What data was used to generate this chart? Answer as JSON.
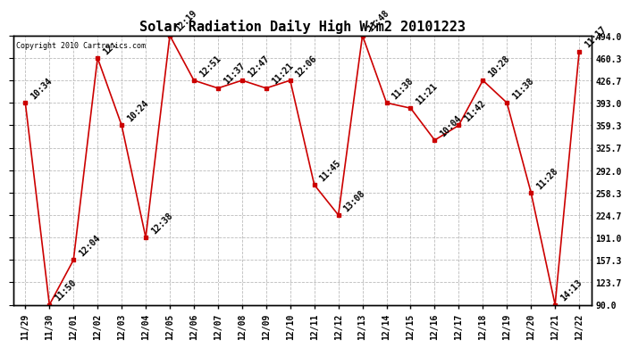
{
  "title": "Solar Radiation Daily High W/m2 20101223",
  "copyright": "Copyright 2010 Cartronics.com",
  "background_color": "#ffffff",
  "line_color": "#cc0000",
  "marker_color": "#cc0000",
  "grid_color": "#bbbbbb",
  "x_labels": [
    "11/29",
    "11/30",
    "12/01",
    "12/02",
    "12/03",
    "12/04",
    "12/05",
    "12/06",
    "12/07",
    "12/08",
    "12/09",
    "12/10",
    "12/11",
    "12/12",
    "12/13",
    "12/14",
    "12/15",
    "12/16",
    "12/17",
    "12/18",
    "12/19",
    "12/20",
    "12/21",
    "12/22"
  ],
  "y_values": [
    393.0,
    90.0,
    157.3,
    460.3,
    359.3,
    191.0,
    494.0,
    426.7,
    415.0,
    426.7,
    415.0,
    426.7,
    270.0,
    224.7,
    494.0,
    393.0,
    385.0,
    337.0,
    359.3,
    426.7,
    393.0,
    258.3,
    90.0,
    470.0
  ],
  "time_labels": [
    "10:34",
    "11:50",
    "12:04",
    "12:",
    "10:24",
    "12:38",
    "12:19",
    "12:51",
    "11:37",
    "12:47",
    "11:21",
    "12:06",
    "11:45",
    "13:08",
    "11:48",
    "11:38",
    "11:21",
    "10:04",
    "11:42",
    "10:28",
    "11:38",
    "11:28",
    "14:13",
    "11:17"
  ],
  "ylim_min": 90.0,
  "ylim_max": 494.0,
  "ytick_labels": [
    "90.0",
    "123.7",
    "157.3",
    "191.0",
    "224.7",
    "258.3",
    "292.0",
    "325.7",
    "359.3",
    "393.0",
    "426.7",
    "460.3",
    "494.0"
  ],
  "ytick_values": [
    90.0,
    123.7,
    157.3,
    191.0,
    224.7,
    258.3,
    292.0,
    325.7,
    359.3,
    393.0,
    426.7,
    460.3,
    494.0
  ],
  "title_fontsize": 11,
  "label_fontsize": 7,
  "annot_fontsize": 7,
  "copyright_fontsize": 6
}
